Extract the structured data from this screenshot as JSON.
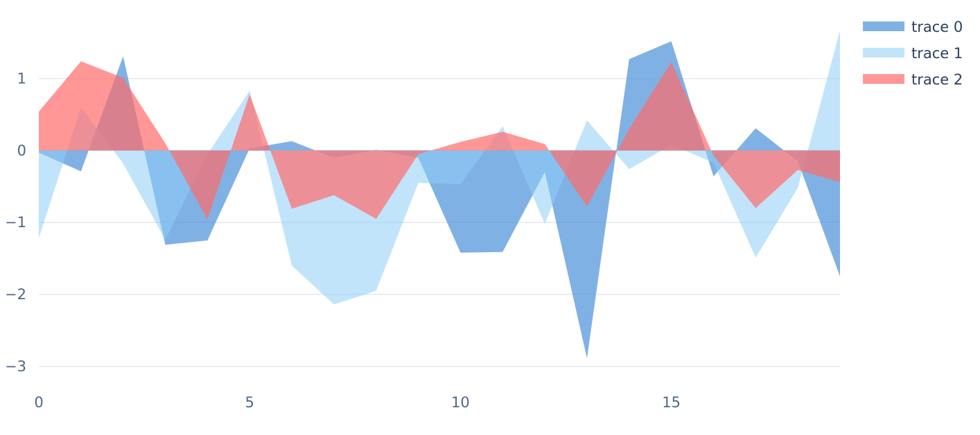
{
  "chart_data": {
    "type": "area",
    "x": [
      0,
      1,
      2,
      3,
      4,
      5,
      6,
      7,
      8,
      9,
      10,
      11,
      12,
      13,
      14,
      15,
      16,
      17,
      18,
      19
    ],
    "xlim": [
      0,
      19
    ],
    "ylim": [
      -3.3,
      1.9
    ],
    "x_ticks": [
      0,
      5,
      10,
      15
    ],
    "x_tick_labels": [
      "0",
      "5",
      "10",
      "15"
    ],
    "y_ticks": [
      1,
      0,
      -1,
      -2,
      -3
    ],
    "y_tick_labels": [
      "1",
      "0",
      "−1",
      "−2",
      "−3"
    ],
    "grid": true,
    "legend_position": "top-right",
    "series": [
      {
        "name": "trace 0",
        "color": "#4a90d9",
        "opacity": 0.7,
        "values": [
          -0.03,
          -0.29,
          1.31,
          -1.31,
          -1.25,
          0.03,
          0.13,
          -0.1,
          0.01,
          -0.1,
          -1.42,
          -1.41,
          -0.3,
          -2.89,
          1.27,
          1.52,
          -0.36,
          0.31,
          -0.15,
          -1.75
        ]
      },
      {
        "name": "trace 1",
        "color": "#8ecdf8",
        "opacity": 0.55,
        "values": [
          -1.22,
          0.6,
          -0.18,
          -1.24,
          -0.05,
          0.83,
          -1.6,
          -2.14,
          -1.95,
          -0.45,
          -0.47,
          0.34,
          -1.02,
          0.42,
          -0.26,
          0.08,
          -0.17,
          -1.49,
          -0.52,
          1.67
        ]
      },
      {
        "name": "trace 2",
        "color": "#ff6b6b",
        "opacity": 0.7,
        "values": [
          0.54,
          1.24,
          1.01,
          0.1,
          -0.96,
          0.78,
          -0.81,
          -0.62,
          -0.95,
          -0.05,
          0.12,
          0.26,
          0.09,
          -0.78,
          0.3,
          1.23,
          -0.07,
          -0.8,
          -0.27,
          -0.44
        ]
      }
    ]
  }
}
